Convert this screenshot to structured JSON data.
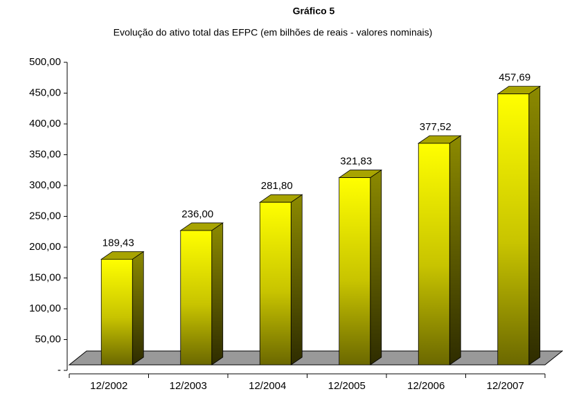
{
  "chart_data": {
    "type": "bar3d",
    "title": "Gráfico 5",
    "subtitle": "Evolução do ativo total das EFPC (em bilhões de reais - valores nominais)",
    "categories": [
      "12/2002",
      "12/2003",
      "12/2004",
      "12/2005",
      "12/2006",
      "12/2007"
    ],
    "values": [
      189.43,
      236.0,
      281.8,
      321.83,
      377.52,
      457.69
    ],
    "value_labels": [
      "189,43",
      "236,00",
      "281,80",
      "321,83",
      "377,52",
      "457,69"
    ],
    "color": "#ffff00",
    "ylim": [
      0,
      500
    ],
    "yticks": [
      {
        "value": 0,
        "label": "-"
      },
      {
        "value": 50,
        "label": "50,00"
      },
      {
        "value": 100,
        "label": "100,00"
      },
      {
        "value": 150,
        "label": "150,00"
      },
      {
        "value": 200,
        "label": "200,00"
      },
      {
        "value": 250,
        "label": "250,00"
      },
      {
        "value": 300,
        "label": "300,00"
      },
      {
        "value": 350,
        "label": "350,00"
      },
      {
        "value": 400,
        "label": "400,00"
      },
      {
        "value": 450,
        "label": "450,00"
      },
      {
        "value": 500,
        "label": "500,00"
      }
    ]
  }
}
